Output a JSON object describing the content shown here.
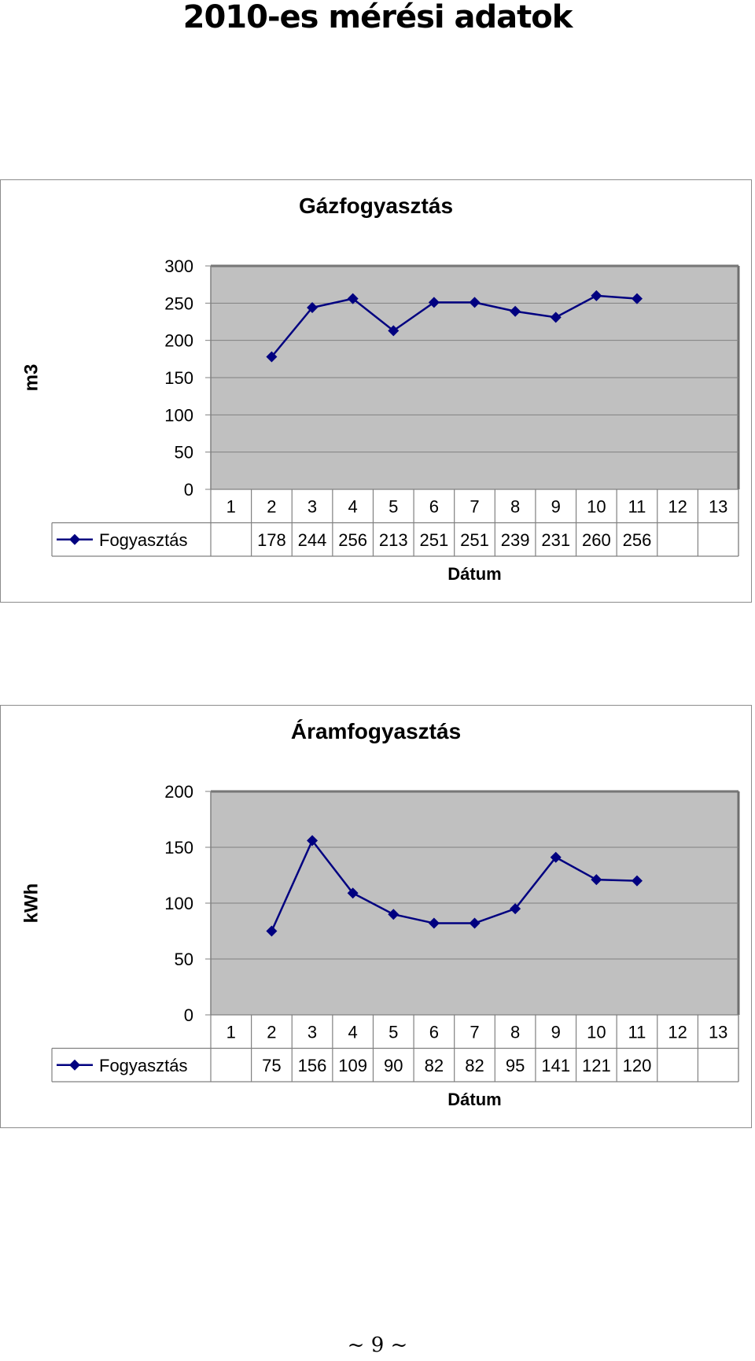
{
  "page": {
    "title": "2010-es mérési adatok",
    "page_number": "~ 9 ~"
  },
  "chart_data": [
    {
      "type": "line",
      "title": "Gázfogyasztás",
      "xlabel": "Dátum",
      "ylabel": "m3",
      "categories": [
        "1",
        "2",
        "3",
        "4",
        "5",
        "6",
        "7",
        "8",
        "9",
        "10",
        "11",
        "12",
        "13"
      ],
      "series": [
        {
          "name": "Fogyasztás",
          "values": [
            null,
            178,
            244,
            256,
            213,
            251,
            251,
            239,
            231,
            260,
            256,
            null,
            null
          ],
          "color": "#000080"
        }
      ],
      "ylim": [
        0,
        300
      ],
      "yticks": [
        0,
        50,
        100,
        150,
        200,
        250,
        300
      ],
      "data_table": true,
      "grid": true,
      "plot_background": "#c0c0c0"
    },
    {
      "type": "line",
      "title": "Áramfogyasztás",
      "xlabel": "Dátum",
      "ylabel": "kWh",
      "categories": [
        "1",
        "2",
        "3",
        "4",
        "5",
        "6",
        "7",
        "8",
        "9",
        "10",
        "11",
        "12",
        "13"
      ],
      "series": [
        {
          "name": "Fogyasztás",
          "values": [
            null,
            75,
            156,
            109,
            90,
            82,
            82,
            95,
            141,
            121,
            120,
            null,
            null
          ],
          "color": "#000080"
        }
      ],
      "ylim": [
        0,
        200
      ],
      "yticks": [
        0,
        50,
        100,
        150,
        200
      ],
      "data_table": true,
      "grid": true,
      "plot_background": "#c0c0c0"
    }
  ]
}
